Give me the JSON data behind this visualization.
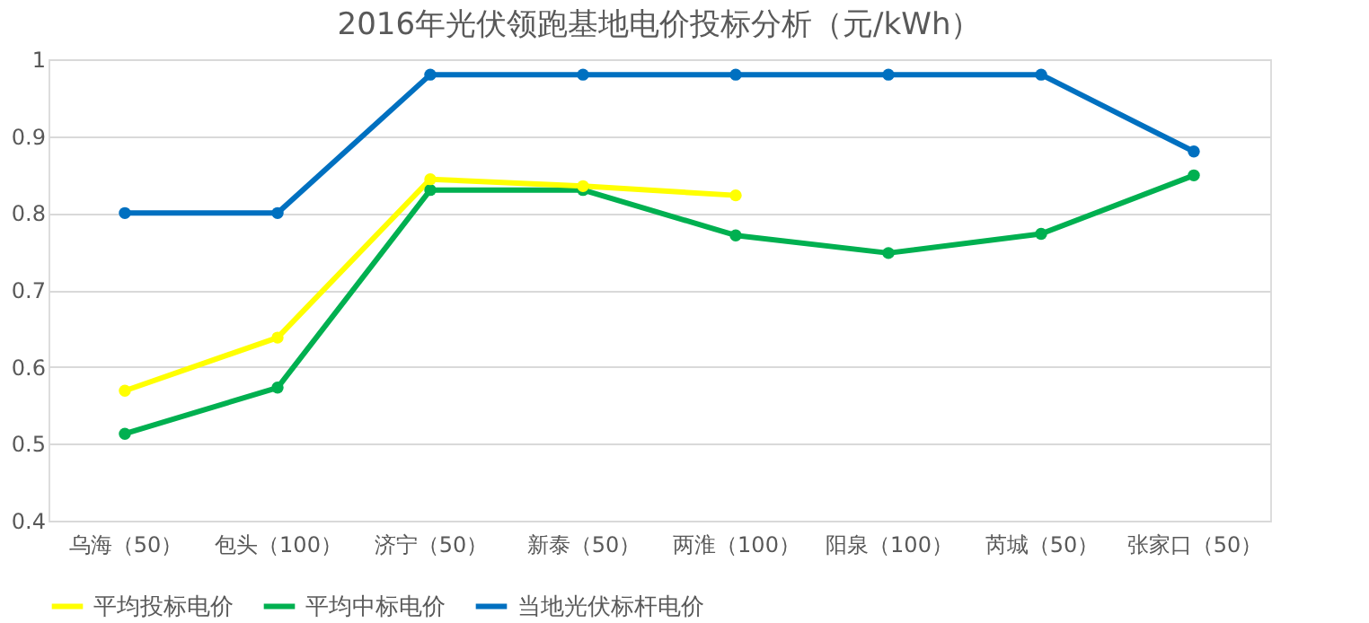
{
  "chart_data": {
    "type": "line",
    "title": "2016年光伏领跑基地电价投标分析（元/kWh）",
    "categories": [
      "乌海（50）",
      "包头（100）",
      "济宁（50）",
      "新泰（50）",
      "两淮（100）",
      "阳泉（100）",
      "芮城（50）",
      "张家口（50）"
    ],
    "series": [
      {
        "name": "平均投标电价",
        "color": "#ffff00",
        "values": [
          0.569,
          0.638,
          0.844,
          0.835,
          0.823,
          null,
          null,
          null
        ]
      },
      {
        "name": "平均中标电价",
        "color": "#00b050",
        "values": [
          0.513,
          0.573,
          0.83,
          0.83,
          0.771,
          0.748,
          0.773,
          0.849
        ]
      },
      {
        "name": "当地光伏标杆电价",
        "color": "#0070c0",
        "values": [
          0.8,
          0.8,
          0.98,
          0.98,
          0.98,
          0.98,
          0.98,
          0.88
        ]
      }
    ],
    "ylim": [
      0.4,
      1
    ],
    "yticks": [
      0.4,
      0.5,
      0.6,
      0.7,
      0.8,
      0.9,
      1
    ],
    "grid": "y",
    "legend": "bottom",
    "marker": "circle",
    "line_style": "solid"
  }
}
